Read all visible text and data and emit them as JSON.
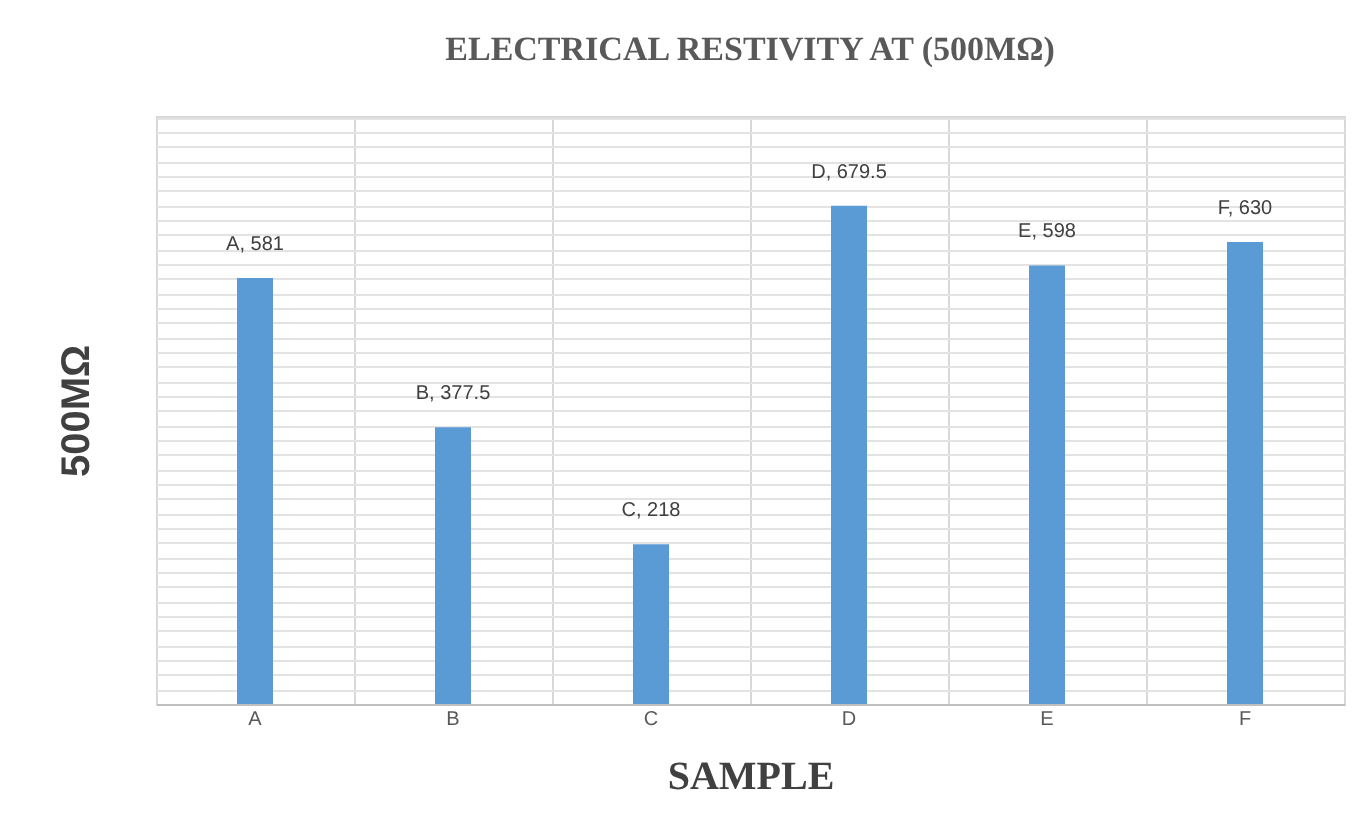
{
  "chart_data": {
    "type": "bar",
    "title": "ELECTRICAL RESTIVITY AT (500MΩ)",
    "xlabel": "SAMPLE",
    "ylabel": "500MΩ",
    "categories": [
      "A",
      "B",
      "C",
      "D",
      "E",
      "F"
    ],
    "values": [
      581,
      377.5,
      218,
      679.5,
      598,
      630
    ],
    "value_labels": [
      "A, 581",
      "B, 377.5",
      "C, 218",
      "D, 679.5",
      "E, 598",
      "F, 630"
    ],
    "color": "#5b9bd5",
    "grid": true,
    "tick_labels": "x"
  }
}
